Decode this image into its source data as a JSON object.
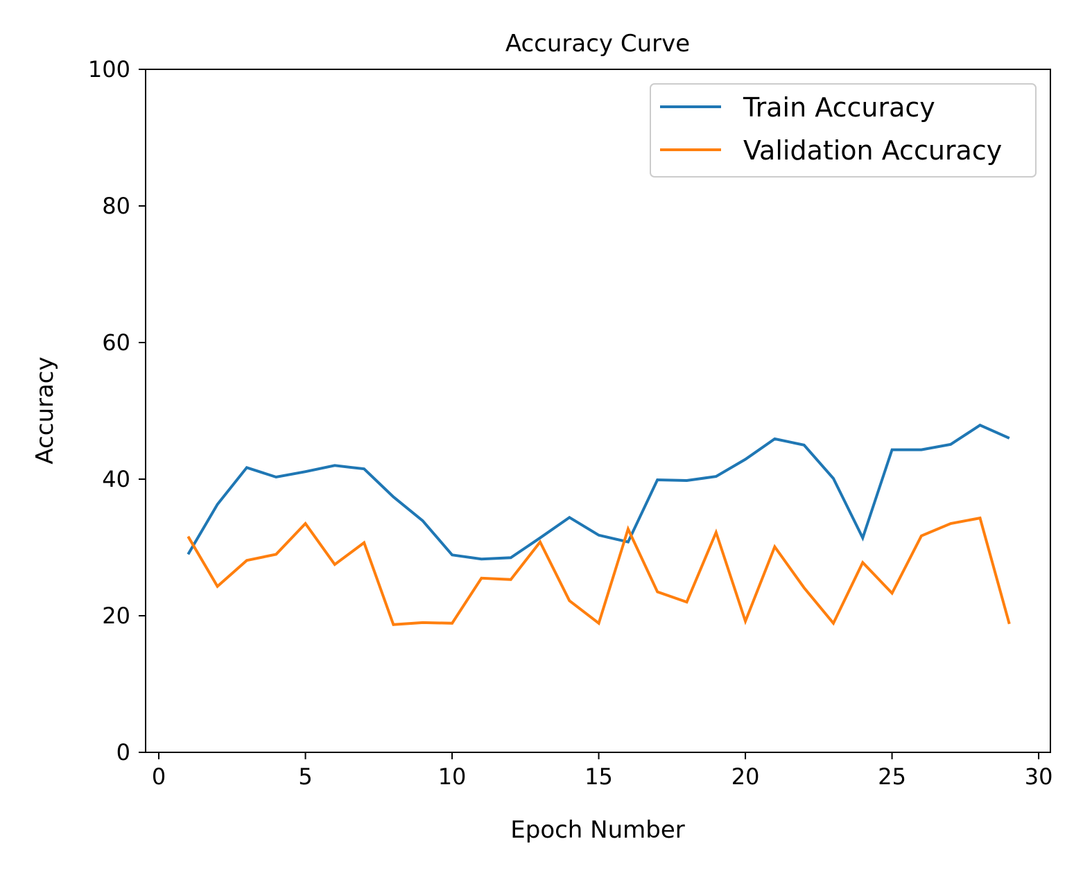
{
  "chart_data": {
    "type": "line",
    "title": "Accuracy Curve",
    "xlabel": "Epoch Number",
    "ylabel": "Accuracy",
    "xlim": [
      -0.45,
      30.4
    ],
    "ylim": [
      0,
      100
    ],
    "xticks": [
      0,
      5,
      10,
      15,
      20,
      25,
      30
    ],
    "yticks": [
      0,
      20,
      40,
      60,
      80,
      100
    ],
    "grid": false,
    "legend_position": "top-right",
    "x": [
      1,
      2,
      3,
      4,
      5,
      6,
      7,
      8,
      9,
      10,
      11,
      12,
      13,
      14,
      15,
      16,
      17,
      18,
      19,
      20,
      21,
      22,
      23,
      24,
      25,
      26,
      27,
      28,
      29
    ],
    "series": [
      {
        "name": "Train Accuracy",
        "color": "#1f77b4",
        "values": [
          29.0,
          36.3,
          41.7,
          40.3,
          41.1,
          42.0,
          41.5,
          37.4,
          33.9,
          28.9,
          28.3,
          28.5,
          31.4,
          34.4,
          31.8,
          30.8,
          39.9,
          39.8,
          40.4,
          42.9,
          45.9,
          45.0,
          40.1,
          31.4,
          44.3,
          44.3,
          45.1,
          47.9,
          46.0
        ]
      },
      {
        "name": "Validation Accuracy",
        "color": "#ff7f0e",
        "values": [
          31.6,
          24.3,
          28.1,
          29.0,
          33.5,
          27.5,
          30.7,
          18.7,
          19.0,
          18.9,
          25.5,
          25.3,
          30.8,
          22.2,
          18.9,
          32.7,
          23.5,
          22.0,
          32.2,
          19.2,
          30.1,
          24.1,
          18.9,
          27.8,
          23.3,
          31.7,
          33.5,
          34.3,
          18.8
        ]
      }
    ]
  }
}
